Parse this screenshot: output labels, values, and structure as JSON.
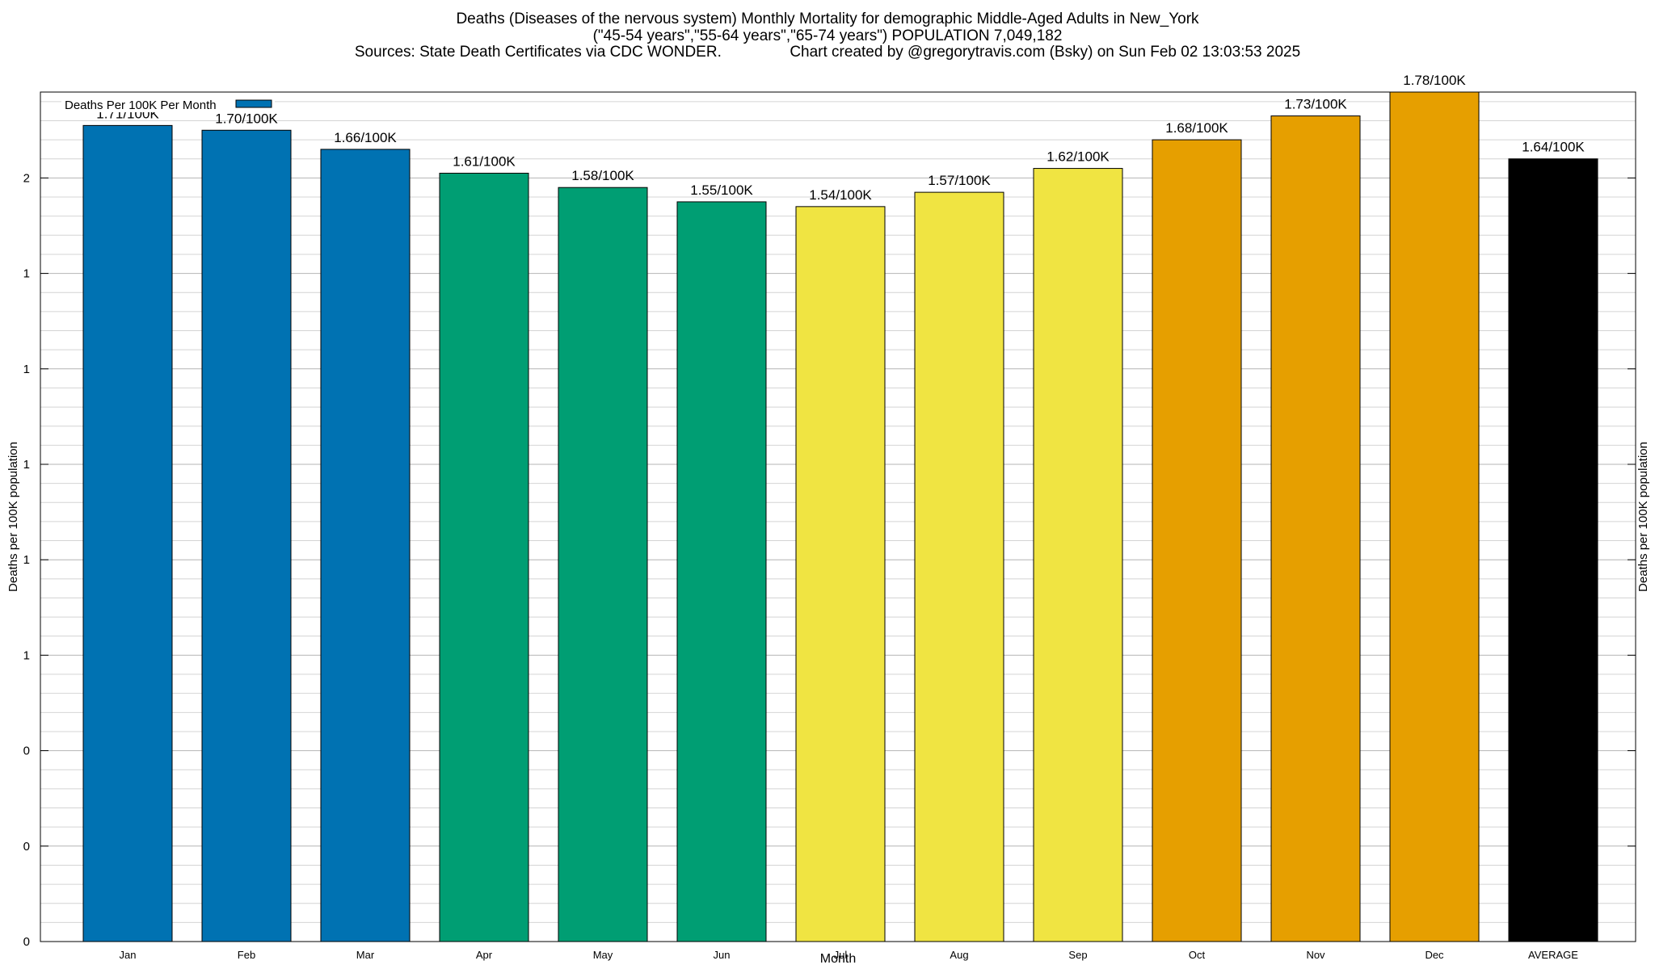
{
  "chart_data": {
    "type": "bar",
    "title": "Deaths (Diseases of the nervous system) Monthly Mortality for demographic Middle-Aged Adults in New_York",
    "subtitle": "(\"45-54 years\",\"55-64 years\",\"65-74 years\") POPULATION 7,049,182",
    "source_line": "Sources: State Death Certificates via CDC WONDER.                Chart created by @gregorytravis.com (Bsky) on Sun Feb 02 13:03:53 2025",
    "xlabel": "Month",
    "ylabel": "Deaths per 100K population",
    "ylabel_right": "Deaths per 100K population",
    "legend": {
      "label": "Deaths Per 100K Per Month",
      "color": "#0072b2",
      "position": "top-left"
    },
    "ylim": [
      0,
      1.78
    ],
    "y_tick_values": [
      0,
      0.2,
      0.4,
      0.6,
      0.8,
      1.0,
      1.2,
      1.4,
      1.6,
      1.8
    ],
    "y_tick_labels": [
      "0",
      "0",
      "0",
      "1",
      "1",
      "1",
      "1",
      "1",
      "2",
      "2"
    ],
    "grid": true,
    "categories": [
      "Jan",
      "Feb",
      "Mar",
      "Apr",
      "May",
      "Jun",
      "Jul",
      "Aug",
      "Sep",
      "Oct",
      "Nov",
      "Dec",
      "AVERAGE"
    ],
    "values": [
      1.71,
      1.7,
      1.66,
      1.61,
      1.58,
      1.55,
      1.54,
      1.57,
      1.62,
      1.68,
      1.73,
      1.78,
      1.64
    ],
    "data_labels": [
      "1.71/100K",
      "1.70/100K",
      "1.66/100K",
      "1.61/100K",
      "1.58/100K",
      "1.55/100K",
      "1.54/100K",
      "1.57/100K",
      "1.62/100K",
      "1.68/100K",
      "1.73/100K",
      "1.78/100K",
      "1.64/100K"
    ],
    "colors": [
      "#0072b2",
      "#0072b2",
      "#0072b2",
      "#009e73",
      "#009e73",
      "#009e73",
      "#f0e442",
      "#f0e442",
      "#f0e442",
      "#e69f00",
      "#e69f00",
      "#e69f00",
      "#000000"
    ]
  }
}
